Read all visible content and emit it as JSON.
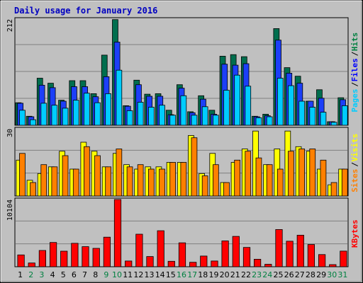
{
  "chart_data": {
    "type": "bar",
    "title": "Daily usage for January 2016",
    "categories": [
      "1",
      "2",
      "3",
      "4",
      "5",
      "6",
      "7",
      "8",
      "9",
      "10",
      "11",
      "12",
      "13",
      "14",
      "15",
      "16",
      "17",
      "18",
      "19",
      "20",
      "21",
      "22",
      "23",
      "24",
      "25",
      "26",
      "27",
      "28",
      "29",
      "30",
      "31"
    ],
    "weekend_days": [
      "2",
      "3",
      "9",
      "10",
      "16",
      "17",
      "23",
      "24",
      "30",
      "31"
    ],
    "panels": [
      {
        "name": "hits-files-pages",
        "max_label": "212",
        "ymax": 212,
        "series_labels": [
          {
            "text": "Pages",
            "color": "#00ccff"
          },
          {
            "text": "Files",
            "color": "#0000ff"
          },
          {
            "text": "Hits",
            "color": "#008040"
          }
        ],
        "series": [
          {
            "name": "Hits",
            "color": "#006e4e",
            "values": [
              45,
              18,
              94,
              84,
              50,
              89,
              89,
              63,
              140,
              211,
              39,
              90,
              62,
              63,
              30,
              81,
              27,
              59,
              30,
              138,
              141,
              137,
              18,
              22,
              193,
              115,
              98,
              48,
              71,
              7,
              55
            ]
          },
          {
            "name": "Files",
            "color": "#1c3ff8",
            "values": [
              44,
              17,
              80,
              75,
              48,
              77,
              77,
              57,
              97,
              166,
              38,
              81,
              58,
              58,
              21,
              74,
              25,
              52,
              22,
              122,
              120,
              123,
              17,
              19,
              170,
              104,
              84,
              48,
              54,
              7,
              51
            ]
          },
          {
            "name": "Pages",
            "color": "#00ccff",
            "values": [
              30,
              11,
              44,
              40,
              34,
              50,
              64,
              45,
              63,
              110,
              29,
              46,
              36,
              40,
              20,
              59,
              20,
              37,
              20,
              70,
              100,
              78,
              15,
              17,
              94,
              79,
              48,
              36,
              26,
              6,
              39
            ]
          }
        ]
      },
      {
        "name": "visits-sites",
        "max_label": "30",
        "ymax": 30,
        "series_labels": [
          {
            "text": "Sites",
            "color": "#ff8000"
          },
          {
            "text": "Visits",
            "color": "#ffff00"
          }
        ],
        "series": [
          {
            "name": "Visits",
            "color": "#ffff00",
            "values": [
              16,
              7,
              10,
              13,
              20,
              12,
              24,
              20,
              13,
              19,
              14,
              12,
              13,
              13,
              15,
              15,
              27,
              10,
              19,
              6,
              15,
              21,
              29,
              14,
              21,
              29,
              22,
              20,
              12,
              5,
              12
            ]
          },
          {
            "name": "Sites",
            "color": "#ff8000",
            "values": [
              19,
              6,
              14,
              13,
              18,
              12,
              22,
              18,
              13,
              21,
              13,
              14,
              12,
              12,
              15,
              15,
              26,
              9,
              14,
              6,
              16,
              20,
              17,
              14,
              12,
              20,
              21,
              21,
              16,
              6,
              12
            ]
          }
        ]
      },
      {
        "name": "kbytes",
        "max_label": "10104",
        "ymax": 10104,
        "series_labels": [
          {
            "text": "KBytes",
            "color": "#ff0000"
          }
        ],
        "series": [
          {
            "name": "KBytes",
            "color": "#ff0000",
            "values": [
              1773,
              563,
              2451,
              3646,
              2340,
              3523,
              3021,
              2761,
              4443,
              10104,
              857,
              4895,
              1535,
              5413,
              816,
              3590,
              666,
              1608,
              866,
              3885,
              4560,
              2907,
              1126,
              367,
              5595,
              3840,
              4740,
              3336,
              1830,
              317,
              2351
            ]
          }
        ]
      }
    ]
  }
}
